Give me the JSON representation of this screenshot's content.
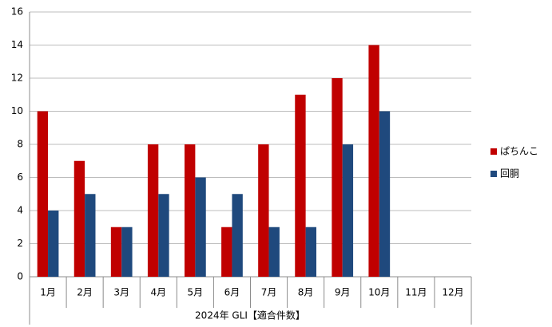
{
  "chart_data": {
    "type": "bar",
    "x_label": "2024年 GLI【適合件数】",
    "categories": [
      "1月",
      "2月",
      "3月",
      "4月",
      "5月",
      "6月",
      "7月",
      "8月",
      "9月",
      "10月",
      "11月",
      "12月"
    ],
    "series": [
      {
        "name": "ぱちんこ",
        "color": "#c00000",
        "values": [
          10,
          7,
          3,
          8,
          8,
          3,
          8,
          11,
          12,
          14,
          null,
          null
        ]
      },
      {
        "name": "回胴",
        "color": "#1f497d",
        "values": [
          4,
          5,
          3,
          5,
          6,
          5,
          3,
          3,
          8,
          10,
          null,
          null
        ]
      }
    ],
    "ylim": [
      0,
      16
    ],
    "yticks": [
      0,
      2,
      4,
      6,
      8,
      10,
      12,
      14,
      16
    ],
    "grid": true,
    "legend": "right"
  }
}
